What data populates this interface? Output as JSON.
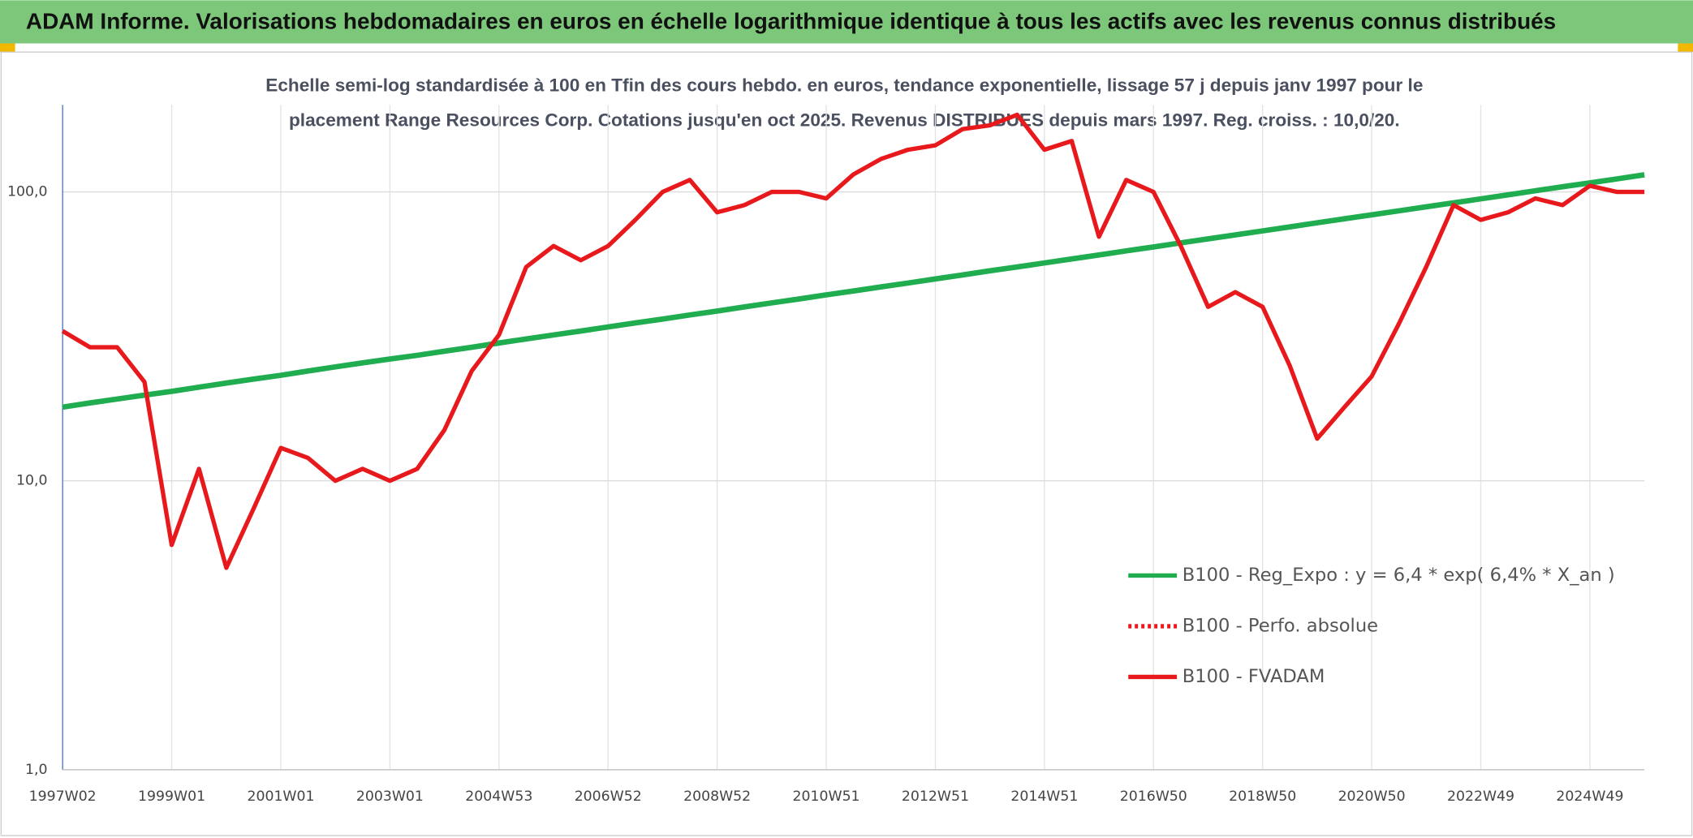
{
  "chart_data": {
    "type": "line",
    "title": "ADAM Informe. Valorisations hebdomadaires en euros en échelle logarithmique identique à tous les actifs avec les revenus connus distribués",
    "subtitle": [
      "Echelle semi-log standardisée à 100 en Tfin des cours hebdo. en euros, tendance exponentielle, lissage 57 j depuis janv 1997 pour le",
      "placement Range Resources Corp. Cotations jusqu'en oct 2025. Revenus DISTRIBUES depuis mars 1997. Reg. croiss. : 10,0/20."
    ],
    "categories": [
      "1997W02",
      null,
      null,
      null,
      "1999W01",
      null,
      null,
      null,
      "2001W01",
      null,
      null,
      null,
      "2003W01",
      null,
      null,
      null,
      "2004W53",
      null,
      null,
      null,
      "2006W52",
      null,
      null,
      null,
      "2008W52",
      null,
      null,
      null,
      "2010W51",
      null,
      null,
      null,
      "2012W51",
      null,
      null,
      null,
      "2014W51",
      null,
      null,
      null,
      "2016W50",
      null,
      null,
      null,
      "2018W50",
      null,
      null,
      null,
      "2020W50",
      null,
      null,
      null,
      "2022W49",
      null,
      null,
      null,
      "2024W49",
      null,
      null
    ],
    "series": [
      {
        "name": "B100 - Reg_Expo : y = 6,4 * exp( 6,4% *  X_an )",
        "color": "#1fad4f",
        "style": "solid",
        "values": [
          18.0,
          18.6,
          19.2,
          19.8,
          20.4,
          21.1,
          21.8,
          22.5,
          23.2,
          24.0,
          24.8,
          25.6,
          26.4,
          27.2,
          28.1,
          29.0,
          30.0,
          31.0,
          32.0,
          33.0,
          34.1,
          35.2,
          36.3,
          37.5,
          38.7,
          40.0,
          41.3,
          42.6,
          44.0,
          45.4,
          46.9,
          48.4,
          50.0,
          51.6,
          53.3,
          55.0,
          56.8,
          58.6,
          60.5,
          62.5,
          64.5,
          66.6,
          68.8,
          71.0,
          73.3,
          75.7,
          78.2,
          80.7,
          83.3,
          86.0,
          88.8,
          91.7,
          94.6,
          97.7,
          100.9,
          104.2,
          107.5,
          111.0,
          114.6
        ]
      },
      {
        "name": "B100 - Perfo. absolue",
        "color": "#e8191c",
        "style": "dotted",
        "values": [
          null,
          null,
          null,
          null,
          null,
          null,
          null,
          null,
          null,
          null,
          null,
          null,
          null,
          null,
          null,
          null,
          null,
          null,
          null,
          null,
          null,
          null,
          null,
          null,
          null,
          null,
          null,
          null,
          null,
          null,
          null,
          null,
          null,
          null,
          null,
          null,
          null,
          null,
          null,
          null,
          null,
          null,
          null,
          null,
          null,
          null,
          null,
          null,
          null,
          null,
          null,
          null,
          null,
          null,
          null,
          null,
          null,
          null,
          null
        ]
      },
      {
        "name": "B100 - FVADAM",
        "color": "#e8191c",
        "style": "solid",
        "values": [
          33,
          29,
          29,
          22,
          6,
          11,
          5,
          8,
          13,
          12,
          10,
          11,
          10,
          11,
          15,
          24,
          32,
          55,
          65,
          58,
          65,
          80,
          100,
          110,
          85,
          90,
          100,
          100,
          95,
          115,
          130,
          140,
          145,
          165,
          170,
          185,
          140,
          150,
          70,
          110,
          100,
          65,
          40,
          45,
          40,
          25,
          14,
          18,
          23,
          35,
          55,
          90,
          80,
          85,
          95,
          90,
          105,
          100,
          100
        ]
      }
    ],
    "log_y": true,
    "ylim": [
      1,
      200
    ],
    "yticks": [
      {
        "value": 1,
        "label": "1,0"
      },
      {
        "value": 10,
        "label": "10,0"
      },
      {
        "value": 100,
        "label": "100,0"
      }
    ],
    "grid": true,
    "legend": "lower-right"
  }
}
